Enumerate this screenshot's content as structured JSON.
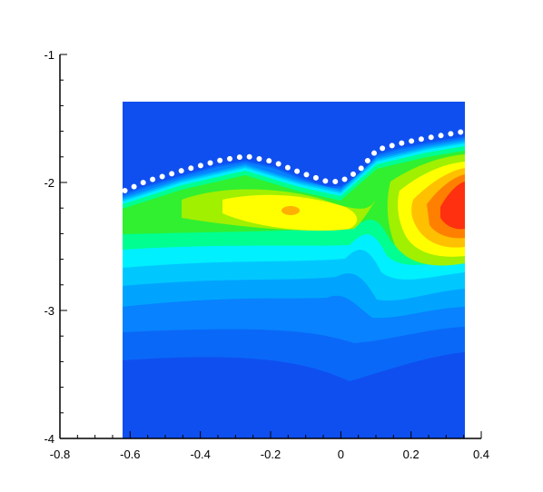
{
  "chart_data": {
    "type": "contour",
    "xlim": [
      -0.8,
      0.4
    ],
    "ylim": [
      -4,
      -1
    ],
    "xticks": [
      -0.8,
      -0.6,
      -0.4,
      -0.2,
      0,
      0.2,
      0.4
    ],
    "yticks": [
      -4,
      -3,
      -2,
      -1
    ],
    "xminorticks": [
      -0.75,
      -0.7,
      -0.65,
      -0.55,
      -0.5,
      -0.45,
      -0.35,
      -0.3,
      -0.25,
      -0.15,
      -0.1,
      -0.05,
      0.05,
      0.1,
      0.15,
      0.25,
      0.3,
      0.35
    ],
    "yminorticks": [
      -3.8,
      -3.6,
      -3.4,
      -3.2,
      -2.8,
      -2.6,
      -2.4,
      -2.2,
      -1.8,
      -1.6,
      -1.4,
      -1.2
    ],
    "series": [
      {
        "color": "#ffffff",
        "x": [
          -0.615,
          -0.556,
          -0.453,
          -0.349,
          -0.271,
          -0.194,
          -0.116,
          -0.039,
          0,
          0.052,
          0.103,
          0.168,
          0.246,
          0.349
        ],
        "values": [
          -2.064,
          -1.993,
          -1.908,
          -1.83,
          -1.794,
          -1.837,
          -1.922,
          -1.993,
          -1.993,
          -1.908,
          -1.745,
          -1.695,
          -1.652,
          -1.603
        ]
      }
    ]
  }
}
